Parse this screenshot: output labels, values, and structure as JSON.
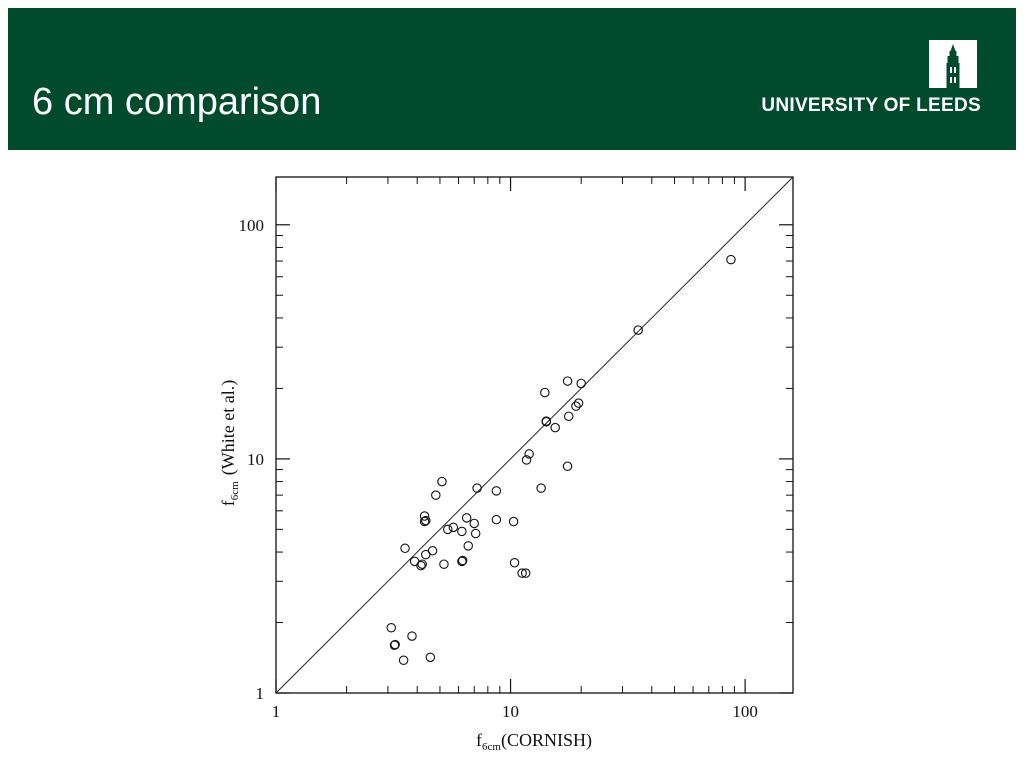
{
  "slide": {
    "title": "6 cm comparison",
    "university": "UNIVERSITY OF LEEDS",
    "logo_icon": "parkinson-tower-icon",
    "header_color": "#004b2d",
    "title_color": "#ffffff"
  },
  "chart_data": {
    "type": "scatter",
    "xscale": "log",
    "yscale": "log",
    "xlim": [
      1,
      160
    ],
    "ylim": [
      1,
      160
    ],
    "xticks": [
      1,
      10,
      100
    ],
    "yticks": [
      1,
      10,
      100
    ],
    "xtick_labels": [
      "1",
      "10",
      "100"
    ],
    "ytick_labels": [
      "1",
      "10",
      "100"
    ],
    "xlabel": {
      "base": "f",
      "sub": "6cm",
      "rest": "(CORNISH)"
    },
    "ylabel": {
      "base": "f",
      "sub": "6cm",
      "rest": "(White et al.)"
    },
    "reference_line": "y = x",
    "marker": "open-circle",
    "grid": false,
    "points": [
      [
        87,
        71
      ],
      [
        35,
        35.5
      ],
      [
        17.5,
        21.5
      ],
      [
        20,
        21
      ],
      [
        14,
        19.2
      ],
      [
        19.5,
        17.3
      ],
      [
        19,
        16.8
      ],
      [
        17.7,
        15.2
      ],
      [
        14.2,
        14.5
      ],
      [
        14.2,
        14.4
      ],
      [
        15.5,
        13.6
      ],
      [
        12,
        10.5
      ],
      [
        11.7,
        9.9
      ],
      [
        17.5,
        9.3
      ],
      [
        13.5,
        7.5
      ],
      [
        7.2,
        7.5
      ],
      [
        8.7,
        7.3
      ],
      [
        5.1,
        8
      ],
      [
        4.8,
        7
      ],
      [
        4.3,
        5.7
      ],
      [
        4.3,
        5.4
      ],
      [
        4.35,
        5.45
      ],
      [
        6.5,
        5.6
      ],
      [
        7,
        5.3
      ],
      [
        8.7,
        5.5
      ],
      [
        10.3,
        5.4
      ],
      [
        5.7,
        5.1
      ],
      [
        5.4,
        5.0
      ],
      [
        6.2,
        4.9
      ],
      [
        7.1,
        4.8
      ],
      [
        6.6,
        4.25
      ],
      [
        3.55,
        4.15
      ],
      [
        4.65,
        4.05
      ],
      [
        4.35,
        3.9
      ],
      [
        3.9,
        3.65
      ],
      [
        4.15,
        3.5
      ],
      [
        4.2,
        3.55
      ],
      [
        5.2,
        3.55
      ],
      [
        6.2,
        3.65
      ],
      [
        6.25,
        3.68
      ],
      [
        10.4,
        3.6
      ],
      [
        11.2,
        3.25
      ],
      [
        11.6,
        3.25
      ],
      [
        3.1,
        1.9
      ],
      [
        3.8,
        1.75
      ],
      [
        3.2,
        1.6
      ],
      [
        3.22,
        1.61
      ],
      [
        4.55,
        1.42
      ],
      [
        3.5,
        1.38
      ]
    ]
  }
}
